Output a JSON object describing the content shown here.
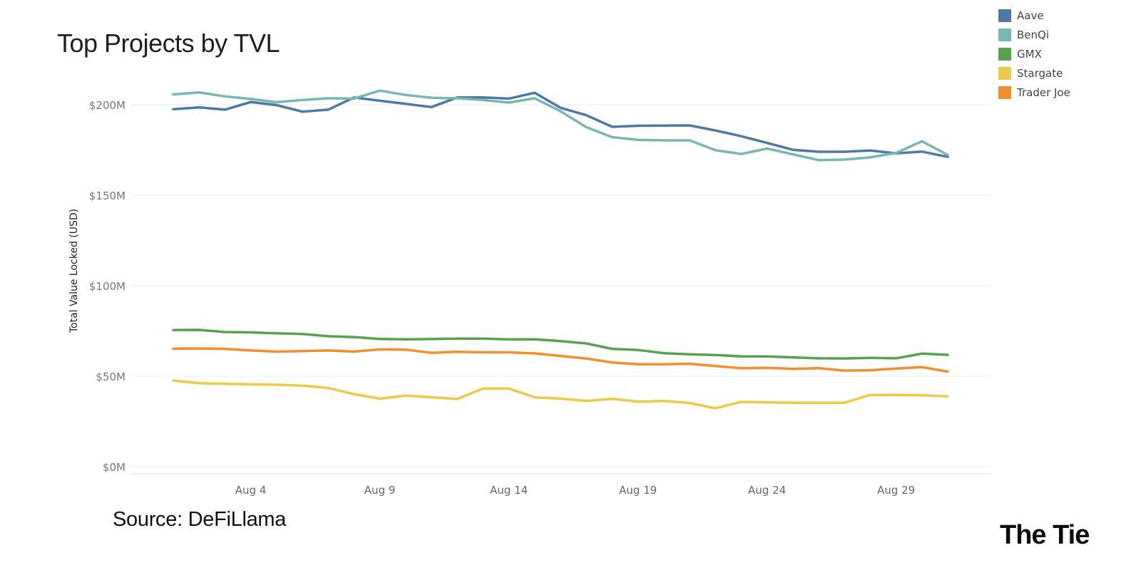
{
  "chart_data": {
    "type": "line",
    "title": "Top Projects by TVL",
    "ylabel": "Total Value Locked (USD)",
    "xlabel": "",
    "ylim": [
      0,
      220000000
    ],
    "y_ticks": [
      0,
      50000000,
      100000000,
      150000000,
      200000000
    ],
    "y_tick_labels": [
      "$0M",
      "$50M",
      "$100M",
      "$150M",
      "$200M"
    ],
    "x_tick_days": [
      4,
      9,
      14,
      19,
      24,
      29
    ],
    "x_tick_labels": [
      "Aug 4",
      "Aug 9",
      "Aug 14",
      "Aug 19",
      "Aug 24",
      "Aug 29"
    ],
    "x": [
      "2022-08-01",
      "2022-08-02",
      "2022-08-03",
      "2022-08-04",
      "2022-08-05",
      "2022-08-06",
      "2022-08-07",
      "2022-08-08",
      "2022-08-09",
      "2022-08-10",
      "2022-08-11",
      "2022-08-12",
      "2022-08-13",
      "2022-08-14",
      "2022-08-15",
      "2022-08-16",
      "2022-08-17",
      "2022-08-18",
      "2022-08-19",
      "2022-08-20",
      "2022-08-21",
      "2022-08-22",
      "2022-08-23",
      "2022-08-24",
      "2022-08-25",
      "2022-08-26",
      "2022-08-27",
      "2022-08-28",
      "2022-08-29",
      "2022-08-30",
      "2022-08-31"
    ],
    "grid": true,
    "legend": "top-right",
    "series": [
      {
        "name": "Aave",
        "color": "#4e79a7",
        "values": [
          197.5,
          198.5,
          197.3,
          201.5,
          199.8,
          196.2,
          197.3,
          204,
          202.2,
          200.5,
          198.7,
          204,
          204,
          203.4,
          206.6,
          198.3,
          194.2,
          187.8,
          188.4,
          188.5,
          188.6,
          185.8,
          182.6,
          178.9,
          175.1,
          174,
          174,
          174.7,
          173.1,
          174.1,
          171.2
        ]
      },
      {
        "name": "BenQi",
        "color": "#76b7b2",
        "values": [
          205.7,
          206.8,
          204.6,
          203.2,
          201.4,
          202.6,
          203.6,
          203.4,
          207.8,
          205.4,
          203.8,
          203.6,
          202.6,
          201.2,
          203.6,
          196.4,
          187.6,
          182.1,
          180.6,
          180.3,
          180.3,
          174.9,
          172.8,
          175.8,
          172.6,
          169.4,
          169.7,
          170.9,
          173.4,
          179.8,
          172.3
        ]
      },
      {
        "name": "GMX",
        "color": "#59a14f",
        "values": [
          75.5,
          75.6,
          74.4,
          74.2,
          73.7,
          73.3,
          72.1,
          71.6,
          70.6,
          70.4,
          70.5,
          70.8,
          70.8,
          70.3,
          70.4,
          69.4,
          68.1,
          65.1,
          64.5,
          62.7,
          62.1,
          61.7,
          61,
          60.9,
          60.4,
          59.9,
          59.8,
          60.1,
          59.9,
          62.5,
          61.8
        ]
      },
      {
        "name": "Stargate",
        "color": "#edc948",
        "values": [
          47.6,
          46.1,
          45.8,
          45.5,
          45.3,
          44.8,
          43.5,
          40.1,
          37.6,
          39.3,
          38.4,
          37.4,
          43.2,
          43.2,
          38.3,
          37.6,
          36.3,
          37.5,
          35.9,
          36.3,
          35.2,
          32.3,
          35.8,
          35.5,
          35.3,
          35.3,
          35.3,
          39.7,
          39.6,
          39.5,
          38.9
        ]
      },
      {
        "name": "Trader Joe",
        "color": "#f28e2b",
        "values": [
          65.2,
          65.3,
          65.1,
          64.2,
          63.6,
          63.9,
          64.2,
          63.6,
          64.8,
          64.7,
          62.9,
          63.5,
          63.2,
          63.2,
          62.6,
          61.2,
          59.8,
          57.6,
          56.6,
          56.6,
          56.9,
          55.6,
          54.4,
          54.6,
          54.1,
          54.4,
          53.1,
          53.3,
          54.2,
          55,
          52.5
        ]
      }
    ]
  },
  "texts": {
    "title": "Top Projects by TVL",
    "source": "Source: DeFiLlama",
    "brand": "The Tie"
  }
}
